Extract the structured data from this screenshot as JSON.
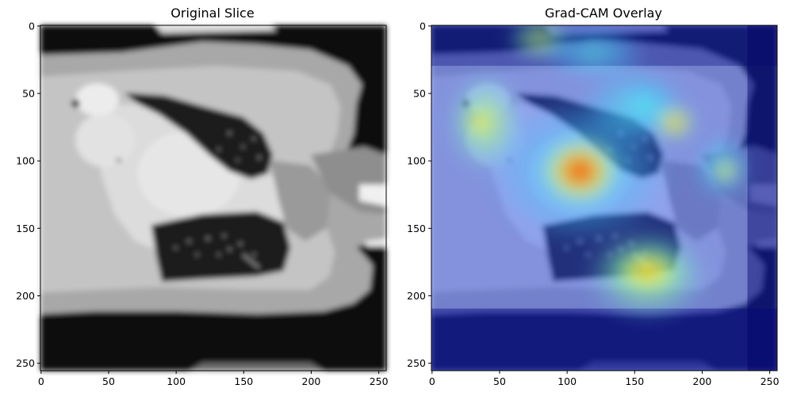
{
  "panels": [
    {
      "title": "Original Slice",
      "x_ticks": [
        "0",
        "50",
        "100",
        "150",
        "200",
        "250"
      ],
      "y_ticks": [
        "0",
        "50",
        "100",
        "150",
        "200",
        "250"
      ]
    },
    {
      "title": "Grad-CAM Overlay",
      "x_ticks": [
        "0",
        "50",
        "100",
        "150",
        "200",
        "250"
      ],
      "y_ticks": [
        "0",
        "50",
        "100",
        "150",
        "200",
        "250"
      ]
    }
  ]
}
